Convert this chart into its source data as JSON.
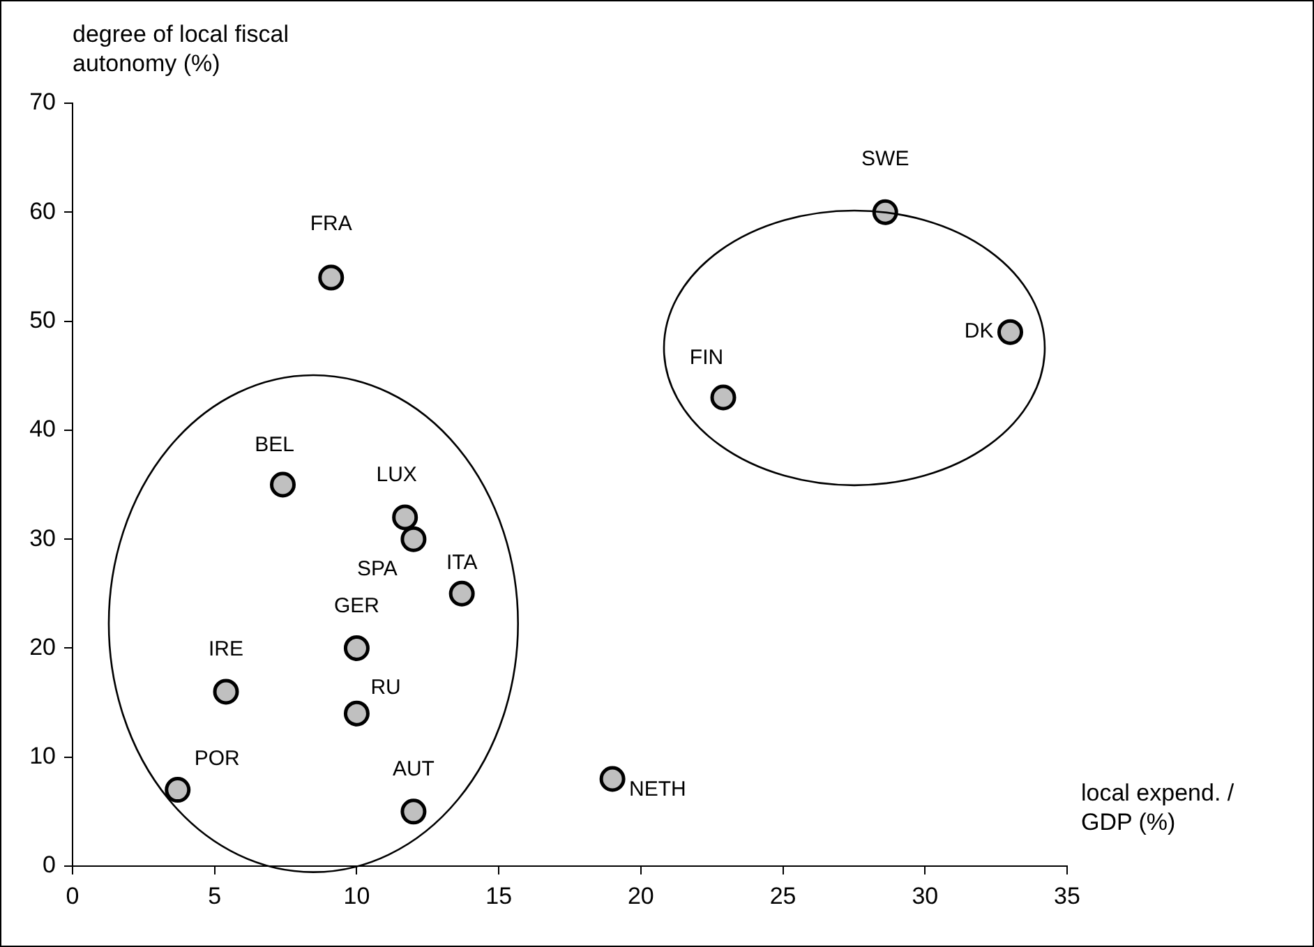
{
  "chart_data": {
    "type": "scatter",
    "xlabel": "local expend. / GDP (%)",
    "ylabel": "degree of local fiscal autonomy (%)",
    "xlim": [
      0,
      35
    ],
    "xticks": [
      0,
      5,
      10,
      15,
      20,
      25,
      30,
      35
    ],
    "ylim": [
      0,
      70
    ],
    "yticks": [
      0,
      10,
      20,
      30,
      40,
      50,
      60,
      70
    ],
    "grid": false,
    "legend": false,
    "marker": "circle",
    "series": [
      {
        "name": "FRA",
        "color": "#c0c0c0",
        "x": [
          9.1
        ],
        "values": [
          54
        ]
      },
      {
        "name": "SWE",
        "color": "#c0c0c0",
        "x": [
          28.6
        ],
        "values": [
          60
        ]
      },
      {
        "name": "DK",
        "color": "#c0c0c0",
        "x": [
          33
        ],
        "values": [
          49
        ]
      },
      {
        "name": "FIN",
        "color": "#c0c0c0",
        "x": [
          22.9
        ],
        "values": [
          43
        ]
      },
      {
        "name": "BEL",
        "color": "#c0c0c0",
        "x": [
          7.4
        ],
        "values": [
          35
        ]
      },
      {
        "name": "LUX",
        "color": "#c0c0c0",
        "x": [
          11.7
        ],
        "values": [
          32
        ]
      },
      {
        "name": "SPA",
        "color": "#c0c0c0",
        "x": [
          12
        ],
        "values": [
          30
        ]
      },
      {
        "name": "ITA",
        "color": "#c0c0c0",
        "x": [
          13.7
        ],
        "values": [
          25
        ]
      },
      {
        "name": "GER",
        "color": "#c0c0c0",
        "x": [
          10
        ],
        "values": [
          20
        ]
      },
      {
        "name": "IRE",
        "color": "#c0c0c0",
        "x": [
          5.4
        ],
        "values": [
          16
        ]
      },
      {
        "name": "RU",
        "color": "#c0c0c0",
        "x": [
          10
        ],
        "values": [
          14
        ]
      },
      {
        "name": "POR",
        "color": "#c0c0c0",
        "x": [
          3.7
        ],
        "values": [
          7
        ]
      },
      {
        "name": "AUT",
        "color": "#c0c0c0",
        "x": [
          12
        ],
        "values": [
          5
        ]
      },
      {
        "name": "NETH",
        "color": "#c0c0c0",
        "x": [
          19
        ],
        "values": [
          8
        ]
      }
    ]
  }
}
